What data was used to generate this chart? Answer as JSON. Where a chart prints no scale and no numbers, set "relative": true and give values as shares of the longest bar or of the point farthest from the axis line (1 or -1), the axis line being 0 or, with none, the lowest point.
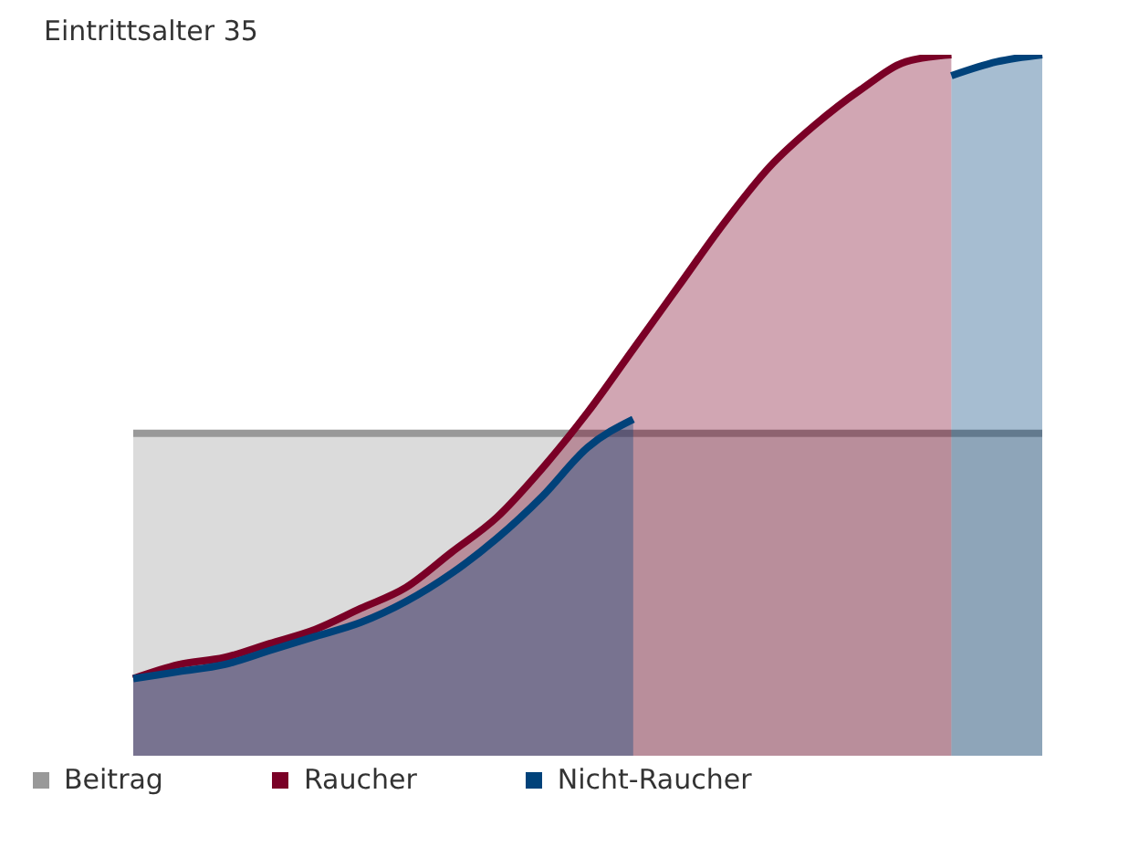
{
  "chart_data": {
    "type": "area",
    "subtitle": "Eintrittsalter 35",
    "relative": true,
    "legend": "bottom",
    "grid": false,
    "categories": [
      null,
      null,
      null,
      null,
      null,
      null,
      null,
      null,
      null,
      null,
      null,
      null,
      null,
      null,
      null,
      null,
      null,
      null,
      null,
      null,
      null
    ],
    "series": [
      {
        "name": "Beitrag",
        "color": "#999999",
        "values": [
          0.46,
          0.46,
          0.46,
          0.46,
          0.46,
          0.46,
          0.46,
          0.46,
          0.46,
          0.46,
          0.46,
          0.46,
          0.46,
          0.46,
          0.46,
          0.46,
          0.46,
          0.46,
          0.46,
          0.46,
          0.46
        ]
      },
      {
        "name": "Raucher",
        "color": "#7a0026",
        "values": [
          0.11,
          0.13,
          0.14,
          0.16,
          0.18,
          0.21,
          0.24,
          0.29,
          0.34,
          0.41,
          0.49,
          0.58,
          0.67,
          0.76,
          0.84,
          0.9,
          0.95,
          0.99,
          1.0,
          null,
          null
        ]
      },
      {
        "name": "Nicht-Raucher",
        "color": "#00427a",
        "values": [
          0.11,
          0.12,
          0.13,
          0.15,
          0.17,
          0.19,
          0.22,
          0.26,
          0.31,
          0.37,
          0.44,
          0.48,
          null,
          null,
          null,
          null,
          null,
          null,
          0.97,
          0.99,
          1.0
        ]
      }
    ]
  }
}
